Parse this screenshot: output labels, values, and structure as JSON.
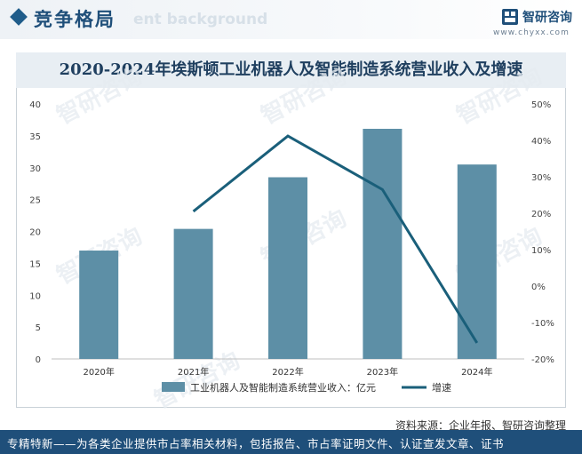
{
  "header": {
    "title": "竞争格局",
    "ghost_text": "ent background",
    "logo_text": "智研咨询",
    "logo_url": "www.chyxx.com"
  },
  "footer": {
    "source": "资料来源：企业年报、智研咨询整理",
    "banner": "专精特新——为各类企业提供市占率相关材料，包括报告、市占率证明文件、认证查发文章、证书"
  },
  "watermark": "智研咨询",
  "colors": {
    "bar": "#5d8fa6",
    "line": "#1a5f7a",
    "header_accent": "#1f4f7a"
  },
  "chart_data": {
    "type": "bar",
    "title": "2020-2024年埃斯顿工业机器人及智能制造系统营业收入及增速",
    "categories": [
      "2020年",
      "2021年",
      "2022年",
      "2023年",
      "2024年"
    ],
    "series": [
      {
        "name": "工业机器人及智能制造系统营业收入：亿元",
        "type": "bar",
        "axis": "left",
        "values": [
          17.0,
          20.4,
          28.5,
          36.1,
          30.5
        ]
      },
      {
        "name": "增速",
        "type": "line",
        "axis": "right",
        "values": [
          null,
          20.5,
          41.2,
          26.5,
          -15.6
        ]
      }
    ],
    "y_left": {
      "min": 0,
      "max": 40,
      "ticks": [
        "0",
        "5",
        "10",
        "15",
        "20",
        "25",
        "30",
        "35",
        "40"
      ]
    },
    "y_right": {
      "min": -20,
      "max": 50,
      "ticks": [
        "-20%",
        "-10%",
        "0%",
        "10%",
        "20%",
        "30%",
        "40%",
        "50%"
      ]
    },
    "grid": false,
    "legend_position": "bottom"
  }
}
